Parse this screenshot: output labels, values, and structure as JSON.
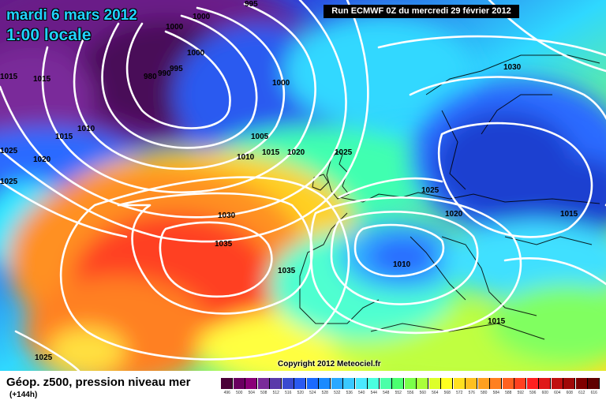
{
  "header": {
    "date": "mardi 6 mars 2012",
    "time": "1:00 locale",
    "run": "Run ECMWF 0Z du mercredi 29 février 2012"
  },
  "map": {
    "copyright": "Copyright 2012 Meteociel.fr",
    "isobar_labels": [
      "995",
      "1000",
      "1000",
      "1000",
      "1000",
      "995",
      "990",
      "980",
      "1015",
      "1015",
      "1010",
      "1015",
      "1025",
      "1020",
      "1025",
      "1005",
      "1010",
      "1015",
      "1020",
      "1025",
      "1030",
      "1035",
      "1035",
      "1025",
      "1030",
      "1025",
      "1020",
      "1010",
      "1015",
      "1015",
      "1010",
      "1015"
    ]
  },
  "legend": {
    "title": "Géop. z500, pression niveau mer",
    "subtitle": "(+144h)",
    "scale_values": [
      "496",
      "500",
      "504",
      "508",
      "512",
      "516",
      "520",
      "524",
      "528",
      "532",
      "536",
      "540",
      "544",
      "548",
      "552",
      "556",
      "560",
      "564",
      "568",
      "572",
      "576",
      "580",
      "584",
      "588",
      "592",
      "596",
      "600",
      "604",
      "608",
      "612",
      "616"
    ],
    "scale_colors": [
      "#4a0038",
      "#6a0060",
      "#8a0078",
      "#7a2a9a",
      "#5a3aaa",
      "#3a4ad0",
      "#2a5af0",
      "#1a6aff",
      "#1a8aff",
      "#2aa8ff",
      "#3ac8ff",
      "#4ae8ff",
      "#4affe0",
      "#4affa8",
      "#4aff70",
      "#7aff4a",
      "#aaff3a",
      "#ddff2a",
      "#ffff20",
      "#ffe020",
      "#ffc020",
      "#ffa020",
      "#ff8020",
      "#ff6020",
      "#ff4020",
      "#ff2020",
      "#e01818",
      "#c01010",
      "#a00808",
      "#800000",
      "#600000"
    ]
  },
  "icons": {
    "map": "weather-map"
  }
}
